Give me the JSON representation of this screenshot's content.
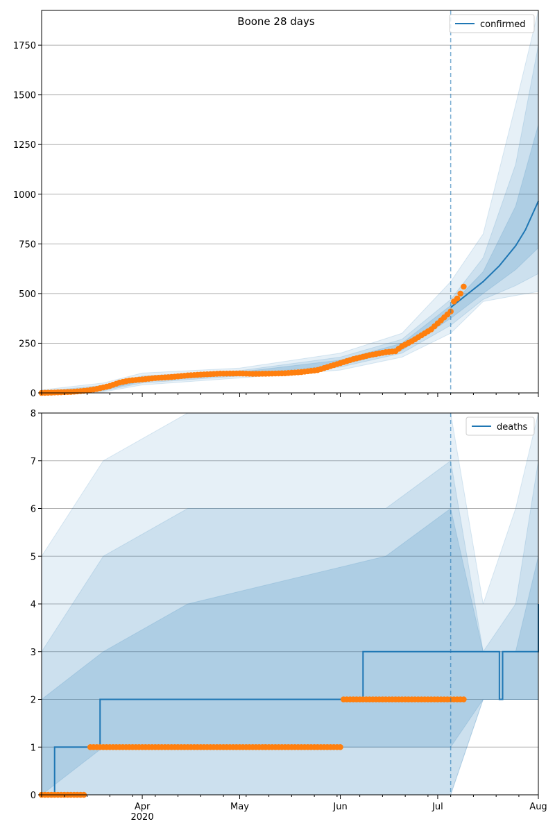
{
  "chart_data": [
    {
      "type": "line",
      "title": "Boone 28 days",
      "xlabel": "",
      "ylabel": "",
      "x_range": [
        "2020-03-01",
        "2020-08-01"
      ],
      "ylim": [
        0,
        1925
      ],
      "yticks": [
        0,
        250,
        500,
        750,
        1000,
        1250,
        1500,
        1750
      ],
      "grid": true,
      "legend": {
        "position": "top-right",
        "entries": [
          "confirmed"
        ]
      },
      "forecast_start": "2020-07-05",
      "colors": {
        "line": "#1f77b4",
        "observed": "#ff7f0e",
        "band": "#1f77b4"
      },
      "series": [
        {
          "name": "confirmed",
          "kind": "line",
          "x": [
            "2020-07-05",
            "2020-07-10",
            "2020-07-15",
            "2020-07-20",
            "2020-07-25",
            "2020-07-28",
            "2020-08-01"
          ],
          "values": [
            430,
            495,
            560,
            640,
            740,
            820,
            965
          ]
        },
        {
          "kind": "observed",
          "x": [
            "2020-03-01",
            "2020-03-10",
            "2020-03-15",
            "2020-03-18",
            "2020-03-22",
            "2020-03-25",
            "2020-03-28",
            "2020-04-01",
            "2020-04-05",
            "2020-04-10",
            "2020-04-15",
            "2020-04-20",
            "2020-04-25",
            "2020-05-01",
            "2020-05-05",
            "2020-05-10",
            "2020-05-15",
            "2020-05-20",
            "2020-05-25",
            "2020-05-30",
            "2020-06-01",
            "2020-06-05",
            "2020-06-10",
            "2020-06-15",
            "2020-06-18",
            "2020-06-20",
            "2020-06-23",
            "2020-06-26",
            "2020-06-29",
            "2020-07-01",
            "2020-07-03",
            "2020-07-05",
            "2020-07-06",
            "2020-07-07",
            "2020-07-08",
            "2020-07-09"
          ],
          "values": [
            0,
            5,
            12,
            20,
            35,
            52,
            62,
            68,
            75,
            80,
            88,
            93,
            97,
            98,
            96,
            97,
            99,
            105,
            115,
            140,
            150,
            170,
            190,
            205,
            210,
            235,
            260,
            290,
            320,
            350,
            380,
            410,
            460,
            475,
            500,
            535
          ]
        }
      ],
      "bands": [
        {
          "level": "outer",
          "x": [
            "2020-03-01",
            "2020-03-20",
            "2020-04-01",
            "2020-05-01",
            "2020-06-01",
            "2020-06-20",
            "2020-07-05",
            "2020-07-15",
            "2020-07-25",
            "2020-08-01"
          ],
          "lower": [
            0,
            5,
            40,
            75,
            115,
            180,
            300,
            460,
            490,
            510
          ],
          "upper": [
            15,
            50,
            100,
            125,
            200,
            300,
            560,
            800,
            1450,
            1925
          ]
        },
        {
          "level": "middle",
          "x": [
            "2020-03-01",
            "2020-03-20",
            "2020-04-01",
            "2020-05-01",
            "2020-06-01",
            "2020-06-20",
            "2020-07-05",
            "2020-07-15",
            "2020-07-25",
            "2020-08-01"
          ],
          "lower": [
            0,
            10,
            50,
            85,
            130,
            200,
            340,
            470,
            540,
            600
          ],
          "upper": [
            8,
            38,
            85,
            112,
            180,
            270,
            470,
            680,
            1150,
            1750
          ]
        },
        {
          "level": "inner",
          "x": [
            "2020-03-01",
            "2020-03-20",
            "2020-04-01",
            "2020-05-01",
            "2020-06-01",
            "2020-06-20",
            "2020-07-05",
            "2020-07-15",
            "2020-07-25",
            "2020-08-01"
          ],
          "lower": [
            0,
            15,
            58,
            92,
            140,
            215,
            375,
            500,
            620,
            730
          ],
          "upper": [
            4,
            30,
            75,
            105,
            165,
            250,
            440,
            610,
            940,
            1350
          ]
        }
      ]
    },
    {
      "type": "line",
      "title": "",
      "xlabel": "",
      "ylabel": "",
      "x_range": [
        "2020-03-01",
        "2020-08-01"
      ],
      "ylim": [
        0,
        8
      ],
      "yticks": [
        0,
        1,
        2,
        3,
        4,
        5,
        6,
        7,
        8
      ],
      "xticks": [
        "Apr\n2020",
        "May",
        "Jun",
        "Jul",
        "Aug"
      ],
      "grid": true,
      "legend": {
        "position": "top-right",
        "entries": [
          "deaths"
        ]
      },
      "forecast_start": "2020-07-05",
      "colors": {
        "line": "#1f77b4",
        "observed": "#ff7f0e",
        "band": "#1f77b4"
      },
      "series": [
        {
          "name": "deaths",
          "kind": "step",
          "x": [
            "2020-03-01",
            "2020-03-04",
            "2020-03-05",
            "2020-03-18",
            "2020-03-19",
            "2020-06-07",
            "2020-06-08",
            "2020-07-05",
            "2020-07-20",
            "2020-07-21",
            "2020-07-31",
            "2020-08-01"
          ],
          "values": [
            0,
            0,
            1,
            1,
            2,
            2,
            3,
            3,
            2,
            3,
            3,
            4
          ]
        },
        {
          "kind": "observed",
          "x_start": [
            "2020-03-01",
            "2020-03-16",
            "2020-06-02"
          ],
          "x_end": [
            "2020-03-14",
            "2020-06-01",
            "2020-07-09"
          ],
          "values": [
            0,
            1,
            2
          ]
        }
      ],
      "bands": [
        {
          "level": "outer",
          "x": [
            "2020-03-01",
            "2020-03-20",
            "2020-04-15",
            "2020-06-15",
            "2020-07-05",
            "2020-07-15",
            "2020-07-25",
            "2020-08-01"
          ],
          "lower": [
            0,
            0,
            0,
            0,
            0,
            2,
            2,
            2
          ],
          "upper": [
            5,
            7,
            8,
            8,
            8,
            4,
            6,
            8
          ]
        },
        {
          "level": "middle",
          "x": [
            "2020-03-01",
            "2020-03-20",
            "2020-04-15",
            "2020-06-15",
            "2020-07-05",
            "2020-07-15",
            "2020-07-25",
            "2020-08-01"
          ],
          "lower": [
            0,
            0,
            0,
            0,
            0,
            2,
            2,
            2
          ],
          "upper": [
            3,
            5,
            6,
            6,
            7,
            3,
            4,
            7
          ]
        },
        {
          "level": "inner",
          "x": [
            "2020-03-01",
            "2020-03-20",
            "2020-04-15",
            "2020-06-15",
            "2020-07-05",
            "2020-07-15",
            "2020-07-25",
            "2020-08-01"
          ],
          "lower": [
            0,
            1,
            1,
            1,
            1,
            2,
            2,
            2
          ],
          "upper": [
            2,
            3,
            4,
            5,
            6,
            3,
            3,
            5
          ]
        }
      ]
    }
  ]
}
